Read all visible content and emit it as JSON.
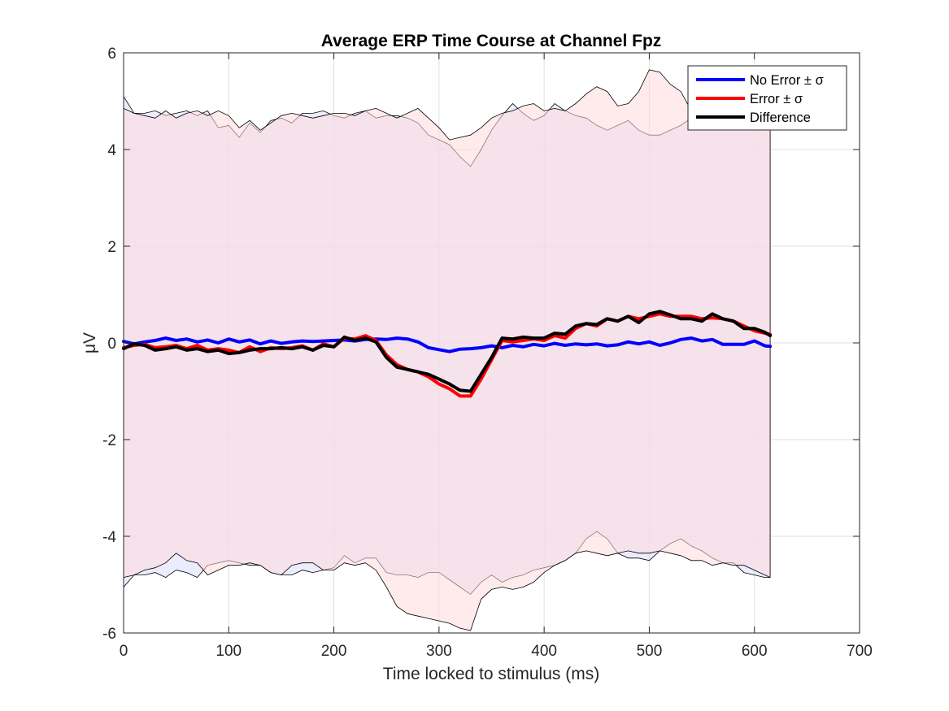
{
  "chart_data": {
    "type": "line",
    "title": "Average ERP Time Course at Channel Fpz",
    "xlabel": "Time locked to stimulus (ms)",
    "ylabel": "μV",
    "xlim": [
      0,
      700
    ],
    "ylim": [
      -6,
      6
    ],
    "xticks": [
      0,
      100,
      200,
      300,
      400,
      500,
      600,
      700
    ],
    "yticks": [
      -6,
      -4,
      -2,
      0,
      2,
      4,
      6
    ],
    "grid": true,
    "legend_position": "top-right",
    "legend": [
      "No Error ± σ",
      "Error ± σ",
      "Difference"
    ],
    "series": [
      {
        "name": "No Error ± σ",
        "color": "#0000ff",
        "band_color": "#dcdcff",
        "x": [
          0,
          10,
          20,
          30,
          40,
          50,
          60,
          70,
          80,
          90,
          100,
          110,
          120,
          130,
          140,
          150,
          160,
          170,
          180,
          190,
          200,
          210,
          220,
          230,
          240,
          250,
          260,
          270,
          280,
          290,
          300,
          310,
          320,
          330,
          340,
          350,
          360,
          370,
          380,
          390,
          400,
          410,
          420,
          430,
          440,
          450,
          460,
          470,
          480,
          490,
          500,
          510,
          520,
          530,
          540,
          550,
          560,
          570,
          580,
          590,
          600,
          610,
          615
        ],
        "mean": [
          0.03,
          -0.02,
          0.02,
          0.05,
          0.1,
          0.05,
          0.08,
          0.02,
          0.06,
          0.0,
          0.08,
          0.02,
          0.06,
          -0.02,
          0.04,
          -0.01,
          0.02,
          0.04,
          0.03,
          0.04,
          0.05,
          0.06,
          0.04,
          0.07,
          0.08,
          0.07,
          0.1,
          0.08,
          0.02,
          -0.1,
          -0.14,
          -0.18,
          -0.13,
          -0.12,
          -0.1,
          -0.06,
          -0.1,
          -0.05,
          -0.08,
          -0.03,
          -0.06,
          -0.01,
          -0.05,
          -0.02,
          -0.04,
          -0.02,
          -0.06,
          -0.04,
          0.02,
          -0.02,
          0.02,
          -0.05,
          0.0,
          0.07,
          0.1,
          0.04,
          0.07,
          -0.03,
          -0.03,
          -0.03,
          0.04,
          -0.06,
          -0.07
        ],
        "upper": [
          5.1,
          4.75,
          4.75,
          4.8,
          4.7,
          4.75,
          4.8,
          4.7,
          4.8,
          4.45,
          4.5,
          4.25,
          4.55,
          4.35,
          4.6,
          4.65,
          4.55,
          4.75,
          4.75,
          4.8,
          4.7,
          4.65,
          4.75,
          4.8,
          4.65,
          4.7,
          4.7,
          4.65,
          4.55,
          4.3,
          4.2,
          4.1,
          3.85,
          3.65,
          4.0,
          4.4,
          4.7,
          4.95,
          4.75,
          4.6,
          4.7,
          4.95,
          4.8,
          4.7,
          4.65,
          4.5,
          4.4,
          4.5,
          4.6,
          4.4,
          4.3,
          4.3,
          4.4,
          4.5,
          4.65,
          4.45,
          4.8,
          4.75,
          4.75,
          4.7,
          4.65,
          4.8,
          4.8
        ],
        "lower": [
          -5.05,
          -4.8,
          -4.8,
          -4.75,
          -4.85,
          -4.7,
          -4.75,
          -4.85,
          -4.6,
          -4.55,
          -4.5,
          -4.55,
          -4.6,
          -4.6,
          -4.75,
          -4.8,
          -4.8,
          -4.7,
          -4.75,
          -4.7,
          -4.65,
          -4.4,
          -4.55,
          -4.45,
          -4.45,
          -4.75,
          -4.8,
          -4.8,
          -4.85,
          -4.75,
          -4.75,
          -4.9,
          -5.05,
          -5.2,
          -4.95,
          -4.8,
          -4.95,
          -4.85,
          -4.8,
          -4.7,
          -4.65,
          -4.6,
          -4.5,
          -4.35,
          -4.05,
          -3.9,
          -4.05,
          -4.35,
          -4.45,
          -4.45,
          -4.5,
          -4.3,
          -4.15,
          -4.05,
          -4.2,
          -4.3,
          -4.45,
          -4.55,
          -4.55,
          -4.75,
          -4.8,
          -4.85,
          -4.85
        ]
      },
      {
        "name": "Error ± σ",
        "color": "#ff0000",
        "band_color": "#ffdada",
        "x": [
          0,
          10,
          20,
          30,
          40,
          50,
          60,
          70,
          80,
          90,
          100,
          110,
          120,
          130,
          140,
          150,
          160,
          170,
          180,
          190,
          200,
          210,
          220,
          230,
          240,
          250,
          260,
          270,
          280,
          290,
          300,
          310,
          320,
          330,
          340,
          350,
          360,
          370,
          380,
          390,
          400,
          410,
          420,
          430,
          440,
          450,
          460,
          470,
          480,
          490,
          500,
          510,
          520,
          530,
          540,
          550,
          560,
          570,
          580,
          590,
          600,
          610,
          615
        ],
        "mean": [
          -0.1,
          -0.05,
          -0.03,
          -0.1,
          -0.08,
          -0.05,
          -0.12,
          -0.05,
          -0.15,
          -0.12,
          -0.15,
          -0.2,
          -0.08,
          -0.18,
          -0.1,
          -0.12,
          -0.1,
          -0.06,
          -0.15,
          -0.02,
          -0.08,
          0.1,
          0.08,
          0.15,
          0.05,
          -0.25,
          -0.45,
          -0.55,
          -0.6,
          -0.7,
          -0.85,
          -0.95,
          -1.1,
          -1.1,
          -0.75,
          -0.35,
          0.05,
          0.02,
          0.05,
          0.08,
          0.05,
          0.15,
          0.1,
          0.3,
          0.4,
          0.35,
          0.5,
          0.45,
          0.55,
          0.5,
          0.55,
          0.6,
          0.55,
          0.55,
          0.55,
          0.5,
          0.52,
          0.5,
          0.45,
          0.35,
          0.25,
          0.2,
          0.18
        ],
        "upper": [
          4.85,
          4.75,
          4.7,
          4.65,
          4.8,
          4.65,
          4.75,
          4.8,
          4.7,
          4.8,
          4.7,
          4.45,
          4.6,
          4.4,
          4.55,
          4.7,
          4.75,
          4.7,
          4.65,
          4.7,
          4.75,
          4.75,
          4.7,
          4.8,
          4.85,
          4.75,
          4.65,
          4.75,
          4.85,
          4.65,
          4.45,
          4.2,
          4.25,
          4.3,
          4.45,
          4.65,
          4.75,
          4.8,
          4.9,
          4.95,
          4.8,
          4.85,
          4.8,
          4.95,
          5.15,
          5.3,
          5.2,
          4.9,
          4.95,
          5.2,
          5.65,
          5.6,
          5.35,
          5.2,
          4.8,
          4.75,
          4.65,
          4.55,
          4.5,
          4.45,
          4.55,
          4.6,
          4.6
        ],
        "lower": [
          -4.85,
          -4.8,
          -4.7,
          -4.65,
          -4.55,
          -4.35,
          -4.5,
          -4.55,
          -4.8,
          -4.7,
          -4.6,
          -4.6,
          -4.55,
          -4.6,
          -4.75,
          -4.8,
          -4.6,
          -4.55,
          -4.55,
          -4.7,
          -4.7,
          -4.55,
          -4.6,
          -4.55,
          -4.7,
          -5.05,
          -5.45,
          -5.6,
          -5.65,
          -5.7,
          -5.75,
          -5.8,
          -5.9,
          -5.95,
          -5.3,
          -5.1,
          -5.05,
          -5.1,
          -5.05,
          -4.95,
          -4.75,
          -4.6,
          -4.5,
          -4.35,
          -4.3,
          -4.35,
          -4.4,
          -4.35,
          -4.3,
          -4.35,
          -4.35,
          -4.3,
          -4.35,
          -4.4,
          -4.5,
          -4.5,
          -4.6,
          -4.55,
          -4.6,
          -4.6,
          -4.7,
          -4.8,
          -4.85
        ]
      },
      {
        "name": "Difference",
        "color": "#000000",
        "x": [
          0,
          10,
          20,
          30,
          40,
          50,
          60,
          70,
          80,
          90,
          100,
          110,
          120,
          130,
          140,
          150,
          160,
          170,
          180,
          190,
          200,
          210,
          220,
          230,
          240,
          250,
          260,
          270,
          280,
          290,
          300,
          310,
          320,
          330,
          340,
          350,
          360,
          370,
          380,
          390,
          400,
          410,
          420,
          430,
          440,
          450,
          460,
          470,
          480,
          490,
          500,
          510,
          520,
          530,
          540,
          550,
          560,
          570,
          580,
          590,
          600,
          610,
          615
        ],
        "mean": [
          -0.12,
          -0.02,
          -0.05,
          -0.15,
          -0.12,
          -0.08,
          -0.15,
          -0.12,
          -0.18,
          -0.15,
          -0.22,
          -0.2,
          -0.15,
          -0.12,
          -0.12,
          -0.1,
          -0.12,
          -0.08,
          -0.15,
          -0.05,
          -0.08,
          0.12,
          0.05,
          0.1,
          0.02,
          -0.3,
          -0.5,
          -0.55,
          -0.6,
          -0.65,
          -0.75,
          -0.85,
          -0.98,
          -1.0,
          -0.65,
          -0.3,
          0.1,
          0.08,
          0.12,
          0.1,
          0.1,
          0.2,
          0.18,
          0.35,
          0.4,
          0.38,
          0.5,
          0.45,
          0.55,
          0.42,
          0.6,
          0.65,
          0.58,
          0.5,
          0.5,
          0.45,
          0.6,
          0.5,
          0.45,
          0.3,
          0.3,
          0.22,
          0.15
        ]
      }
    ]
  }
}
